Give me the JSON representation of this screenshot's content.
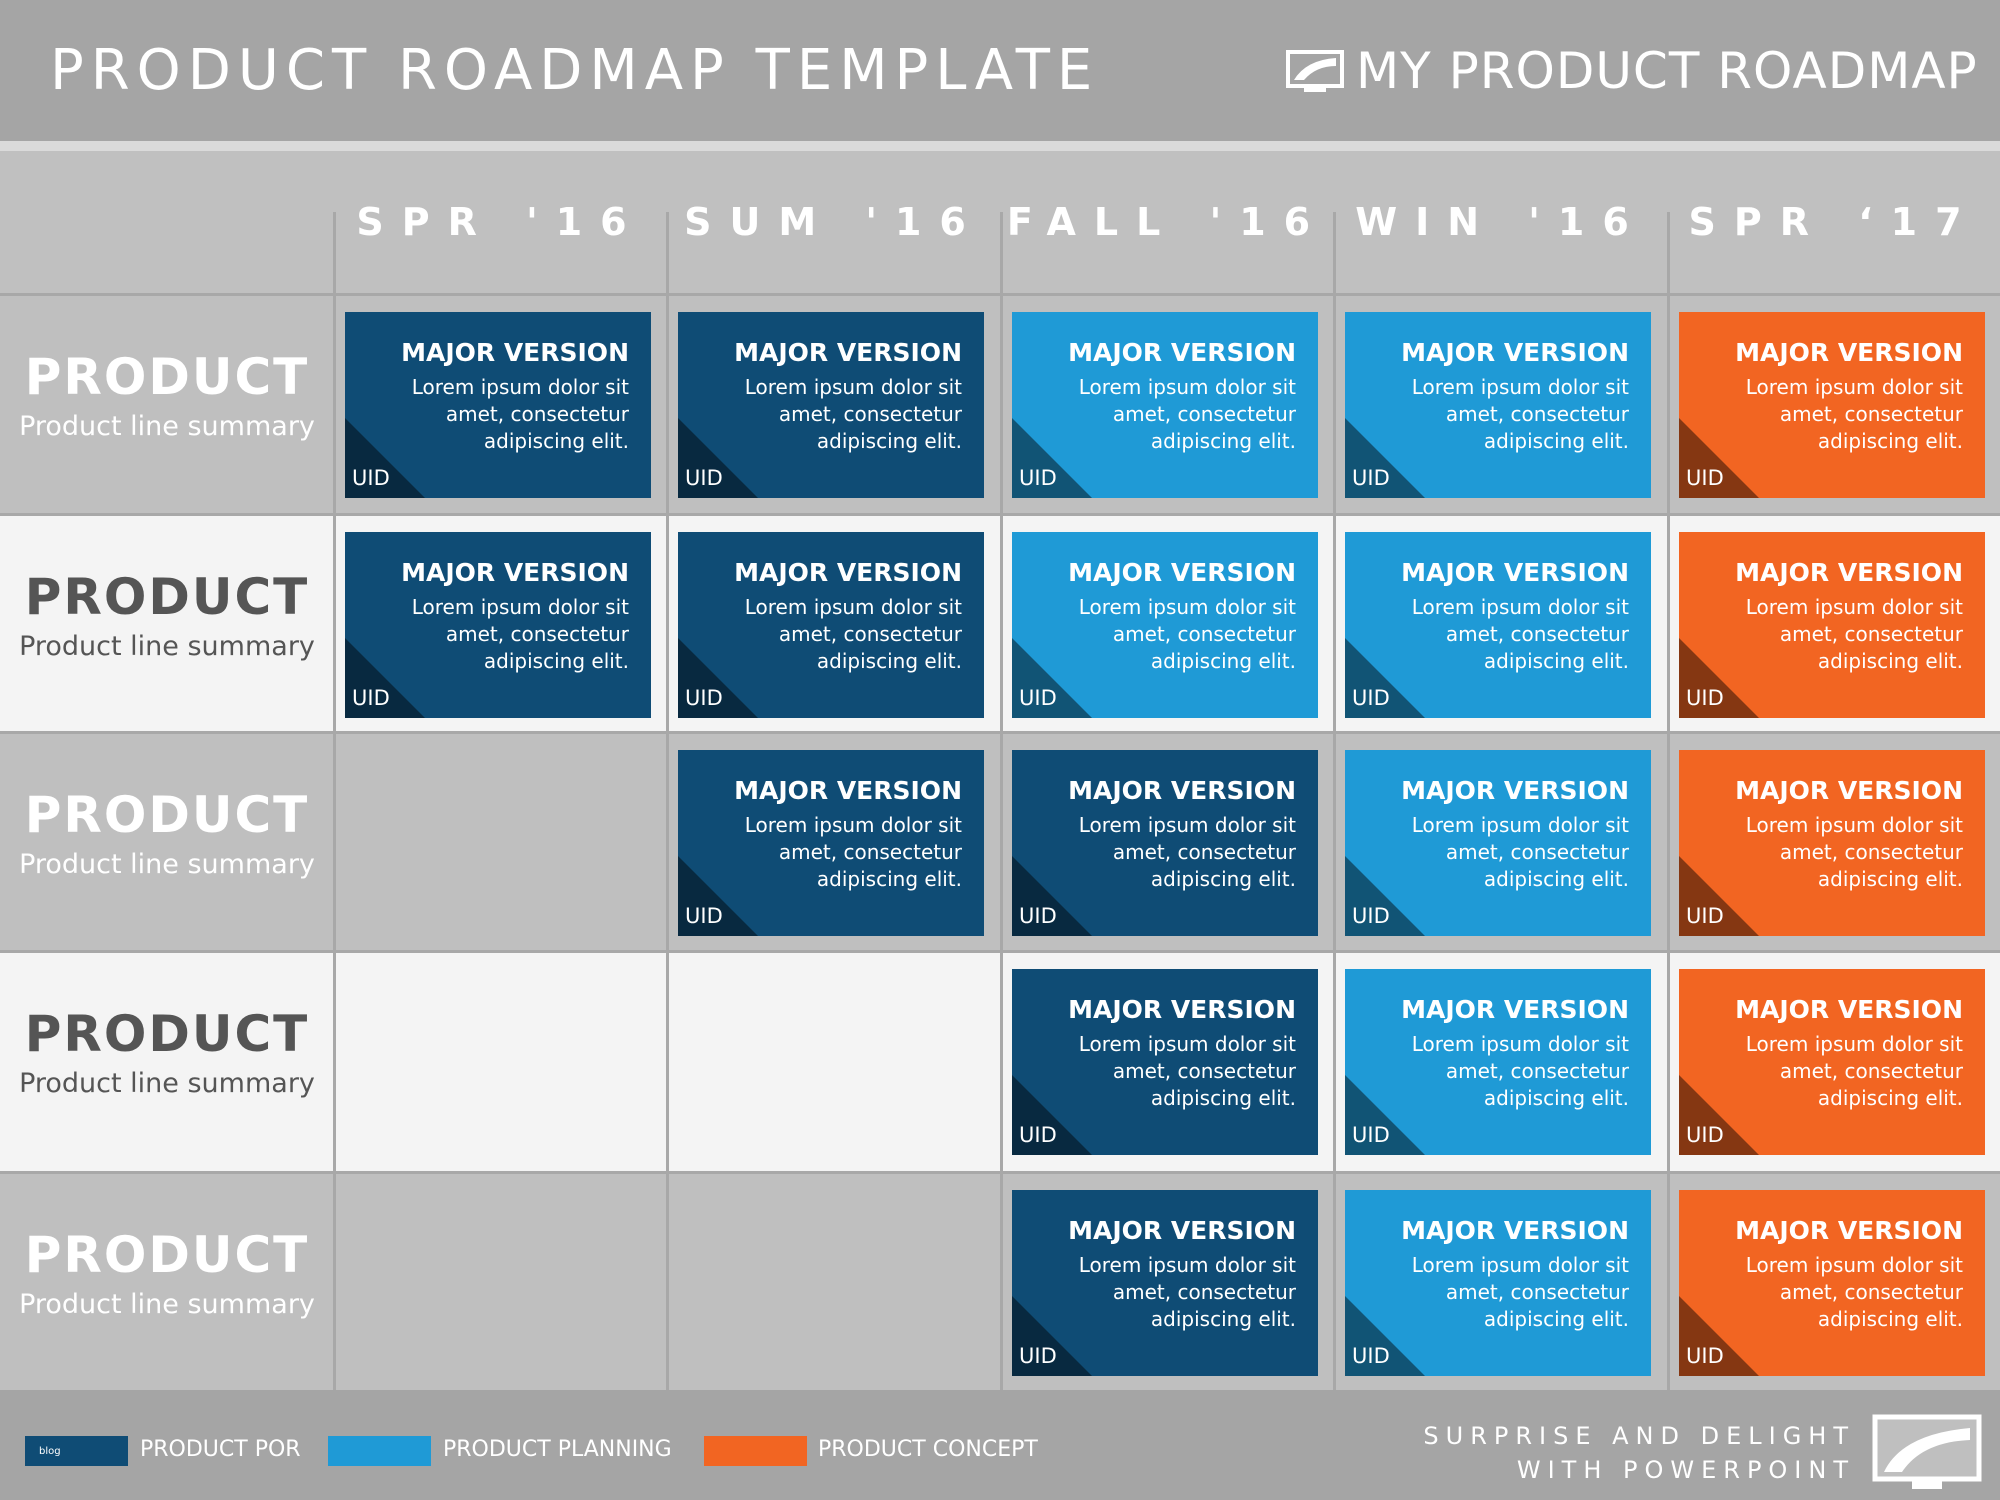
{
  "header": {
    "title": "PRODUCT ROADMAP TEMPLATE",
    "brand": "MY PRODUCT ROADMAP"
  },
  "columns": [
    "SPR '16",
    "SUM '16",
    "FALL '16",
    "WIN '16",
    "SPR ‘17"
  ],
  "rows": [
    {
      "title": "PRODUCT",
      "summary": "Product line summary",
      "cards": [
        {
          "column": 0,
          "color": "#0f4c75",
          "title": "MAJOR VERSION",
          "text": "Lorem ipsum dolor sit amet, consectetur adipiscing elit.",
          "uid": "UID"
        },
        {
          "column": 1,
          "color": "#0f4c75",
          "title": "MAJOR VERSION",
          "text": "Lorem ipsum dolor sit amet, consectetur adipiscing elit.",
          "uid": "UID"
        },
        {
          "column": 2,
          "color": "#1f9ad6",
          "title": "MAJOR VERSION",
          "text": "Lorem ipsum dolor sit amet, consectetur adipiscing elit.",
          "uid": "UID"
        },
        {
          "column": 3,
          "color": "#1f9ad6",
          "title": "MAJOR VERSION",
          "text": "Lorem ipsum dolor sit amet, consectetur adipiscing elit.",
          "uid": "UID"
        },
        {
          "column": 4,
          "color": "#f26522",
          "title": "MAJOR VERSION",
          "text": "Lorem ipsum dolor sit amet, consectetur adipiscing elit.",
          "uid": "UID"
        }
      ]
    },
    {
      "title": "PRODUCT",
      "summary": "Product line summary",
      "cards": [
        {
          "column": 0,
          "color": "#0f4c75",
          "title": "MAJOR VERSION",
          "text": "Lorem ipsum dolor sit amet, consectetur adipiscing elit.",
          "uid": "UID"
        },
        {
          "column": 1,
          "color": "#0f4c75",
          "title": "MAJOR VERSION",
          "text": "Lorem ipsum dolor sit amet, consectetur adipiscing elit.",
          "uid": "UID"
        },
        {
          "column": 2,
          "color": "#1f9ad6",
          "title": "MAJOR VERSION",
          "text": "Lorem ipsum dolor sit amet, consectetur adipiscing elit.",
          "uid": "UID"
        },
        {
          "column": 3,
          "color": "#1f9ad6",
          "title": "MAJOR VERSION",
          "text": "Lorem ipsum dolor sit amet, consectetur adipiscing elit.",
          "uid": "UID"
        },
        {
          "column": 4,
          "color": "#f26522",
          "title": "MAJOR VERSION",
          "text": "Lorem ipsum dolor sit amet, consectetur adipiscing elit.",
          "uid": "UID"
        }
      ]
    },
    {
      "title": "PRODUCT",
      "summary": "Product line summary",
      "cards": [
        {
          "column": 1,
          "color": "#0f4c75",
          "title": "MAJOR VERSION",
          "text": "Lorem ipsum dolor sit amet, consectetur adipiscing elit.",
          "uid": "UID"
        },
        {
          "column": 2,
          "color": "#0f4c75",
          "title": "MAJOR VERSION",
          "text": "Lorem ipsum dolor sit amet, consectetur adipiscing elit.",
          "uid": "UID"
        },
        {
          "column": 3,
          "color": "#1f9ad6",
          "title": "MAJOR VERSION",
          "text": "Lorem ipsum dolor sit amet, consectetur adipiscing elit.",
          "uid": "UID"
        },
        {
          "column": 4,
          "color": "#f26522",
          "title": "MAJOR VERSION",
          "text": "Lorem ipsum dolor sit amet, consectetur adipiscing elit.",
          "uid": "UID"
        }
      ]
    },
    {
      "title": "PRODUCT",
      "summary": "Product line summary",
      "cards": [
        {
          "column": 2,
          "color": "#0f4c75",
          "title": "MAJOR VERSION",
          "text": "Lorem ipsum dolor sit amet, consectetur adipiscing elit.",
          "uid": "UID"
        },
        {
          "column": 3,
          "color": "#1f9ad6",
          "title": "MAJOR VERSION",
          "text": "Lorem ipsum dolor sit amet, consectetur adipiscing elit.",
          "uid": "UID"
        },
        {
          "column": 4,
          "color": "#f26522",
          "title": "MAJOR VERSION",
          "text": "Lorem ipsum dolor sit amet, consectetur adipiscing elit.",
          "uid": "UID"
        }
      ]
    },
    {
      "title": "PRODUCT",
      "summary": "Product line summary",
      "cards": [
        {
          "column": 2,
          "color": "#0f4c75",
          "title": "MAJOR VERSION",
          "text": "Lorem ipsum dolor sit amet, consectetur adipiscing elit.",
          "uid": "UID"
        },
        {
          "column": 3,
          "color": "#1f9ad6",
          "title": "MAJOR VERSION",
          "text": "Lorem ipsum dolor sit amet, consectetur adipiscing elit.",
          "uid": "UID"
        },
        {
          "column": 4,
          "color": "#f26522",
          "title": "MAJOR VERSION",
          "text": "Lorem ipsum dolor sit amet, consectetur adipiscing elit.",
          "uid": "UID"
        }
      ]
    }
  ],
  "legend": [
    {
      "label": "PRODUCT POR",
      "color": "#0f4c75",
      "swatch_text": "blog"
    },
    {
      "label": "PRODUCT PLANNING",
      "color": "#1f9ad6"
    },
    {
      "label": "PRODUCT CONCEPT",
      "color": "#f26522"
    }
  ],
  "footer": {
    "tagline": [
      "SURPRISE AND DELIGHT",
      "WITH POWERPOINT"
    ]
  }
}
